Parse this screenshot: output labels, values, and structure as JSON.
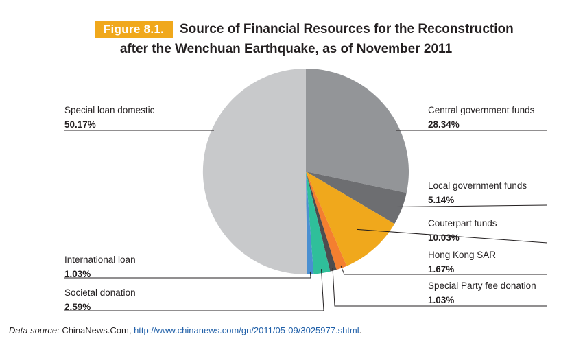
{
  "figure": {
    "label": "Figure 8.1.",
    "title_line1": "Source of Financial Resources for the Reconstruction",
    "title_line2": "after the Wenchuan Earthquake, as of November 2011"
  },
  "chart_data": {
    "type": "pie",
    "title": "Source of Financial Resources for the Reconstruction after the Wenchuan Earthquake, as of November 2011",
    "slices": [
      {
        "label": "Central government funds",
        "value": 28.34,
        "value_label": "28.34%",
        "color": "#939598"
      },
      {
        "label": "Local government funds",
        "value": 5.14,
        "value_label": "5.14%",
        "color": "#6d6e71"
      },
      {
        "label": "Couterpart funds",
        "value": 10.03,
        "value_label": "10.03%",
        "color": "#f0a81c"
      },
      {
        "label": "Hong Kong SAR",
        "value": 1.67,
        "value_label": "1.67%",
        "color": "#f47f30"
      },
      {
        "label": "Special Party fee donation",
        "value": 1.03,
        "value_label": "1.03%",
        "color": "#4d4d4f"
      },
      {
        "label": "Societal donation",
        "value": 2.59,
        "value_label": "2.59%",
        "color": "#2fbf9a"
      },
      {
        "label": "International loan",
        "value": 1.03,
        "value_label": "1.03%",
        "color": "#4a8fd1"
      },
      {
        "label": "Special loan domestic",
        "value": 50.17,
        "value_label": "50.17%",
        "color": "#c8c9cb"
      }
    ]
  },
  "source": {
    "prefix": "Data source:",
    "text": " ChinaNews.Com, ",
    "url": "http://www.chinanews.com/gn/2011/05-09/3025977.shtml",
    "suffix": "."
  }
}
